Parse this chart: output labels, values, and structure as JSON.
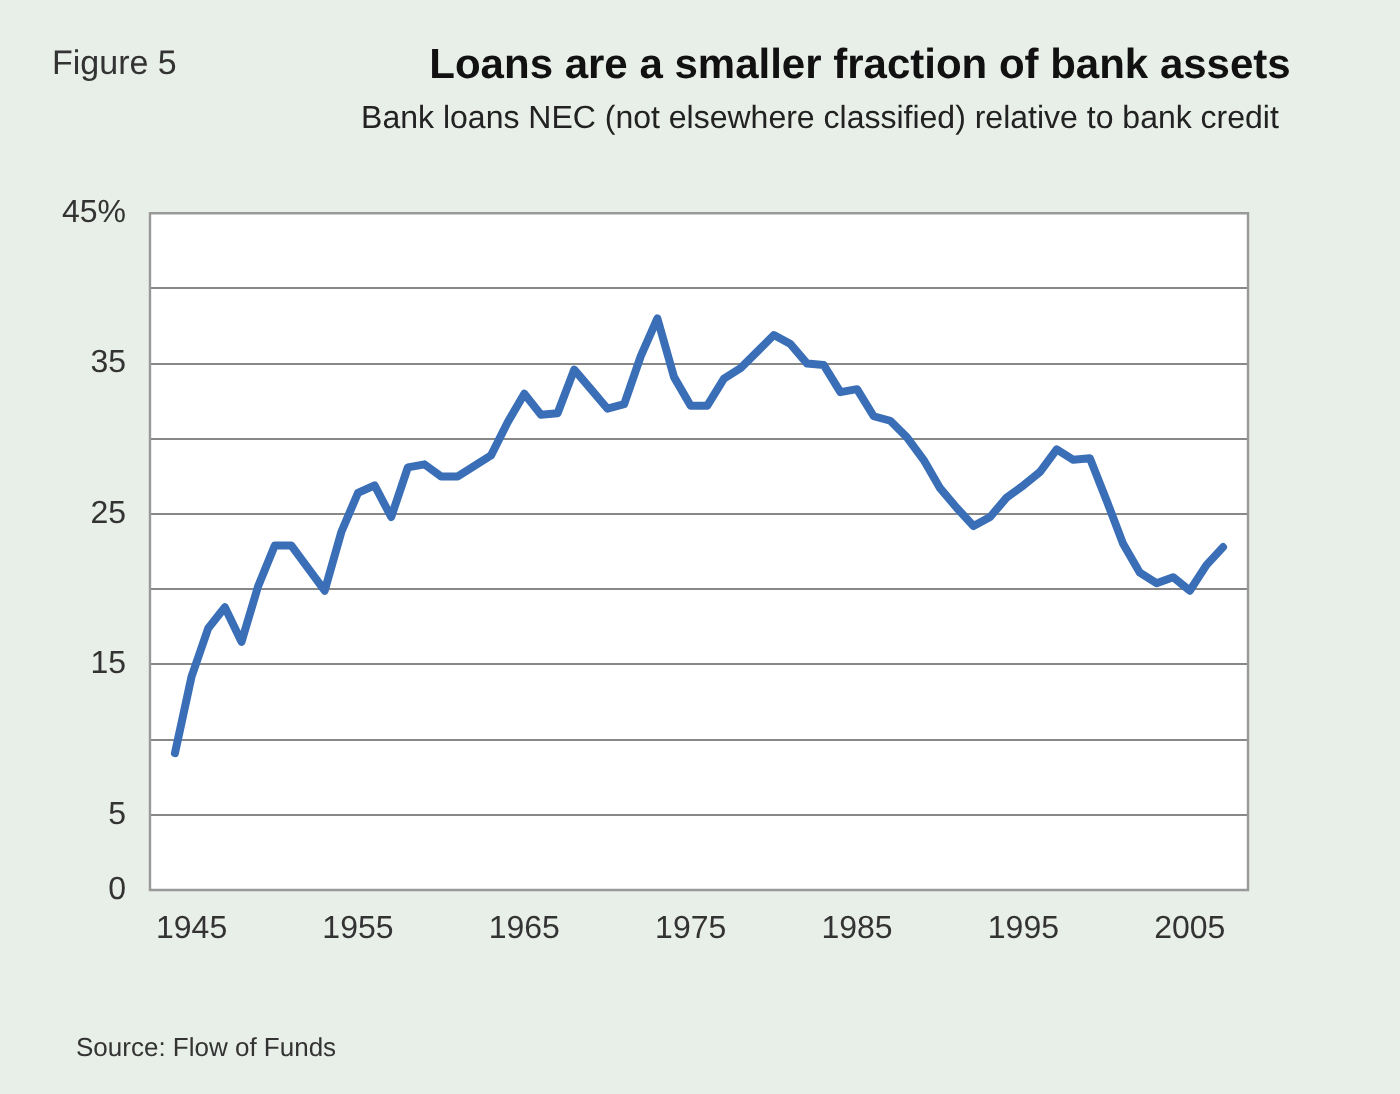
{
  "chart_data": {
    "type": "line",
    "title": "Loans are a smaller fraction of bank assets",
    "subtitle": "Bank loans NEC (not elsewhere classified) relative to bank credit",
    "annotations": [
      "Figure 5",
      "Source: Flow of Funds"
    ],
    "x": [
      1944,
      1945,
      1946,
      1947,
      1948,
      1949,
      1950,
      1951,
      1952,
      1953,
      1954,
      1955,
      1956,
      1957,
      1958,
      1959,
      1960,
      1961,
      1962,
      1963,
      1964,
      1965,
      1966,
      1967,
      1968,
      1969,
      1970,
      1971,
      1972,
      1973,
      1974,
      1975,
      1976,
      1977,
      1978,
      1979,
      1980,
      1981,
      1982,
      1983,
      1984,
      1985,
      1986,
      1987,
      1988,
      1989,
      1990,
      1991,
      1992,
      1993,
      1994,
      1995,
      1996,
      1997,
      1998,
      1999,
      2000,
      2001,
      2002,
      2003,
      2004,
      2005,
      2006,
      2007
    ],
    "series": [
      {
        "color": "#3a6fb8",
        "values": [
          9.1,
          14.2,
          17.4,
          18.8,
          16.5,
          20.2,
          22.9,
          22.9,
          21.4,
          19.9,
          23.8,
          26.4,
          26.9,
          24.8,
          28.1,
          28.3,
          27.5,
          27.5,
          28.2,
          28.9,
          31.1,
          33.0,
          31.6,
          31.7,
          34.6,
          33.3,
          32.0,
          32.3,
          35.5,
          38.0,
          34.1,
          32.2,
          32.2,
          34.0,
          34.7,
          35.8,
          36.9,
          36.3,
          35.0,
          34.9,
          33.1,
          33.3,
          31.5,
          31.2,
          30.1,
          28.6,
          26.7,
          25.4,
          24.2,
          24.8,
          26.1,
          26.9,
          27.8,
          29.3,
          28.6,
          28.7,
          25.9,
          23.0,
          21.1,
          20.4,
          20.8,
          19.9,
          21.6,
          22.8
        ]
      }
    ],
    "xlim": [
      1942.5,
      2008.5
    ],
    "xticks": [
      1945,
      1955,
      1965,
      1975,
      1985,
      1995,
      2005
    ],
    "ylim": [
      0,
      45
    ],
    "yticks": [
      0,
      5,
      {
        "value": 10,
        "label": null
      },
      15,
      {
        "value": 20,
        "label": null
      },
      25,
      {
        "value": 30,
        "label": null
      },
      35,
      {
        "value": 40,
        "label": null
      },
      {
        "value": 45,
        "label": "45%"
      }
    ],
    "grid": "y",
    "legend": false,
    "marker": "none",
    "line_style": "solid"
  }
}
